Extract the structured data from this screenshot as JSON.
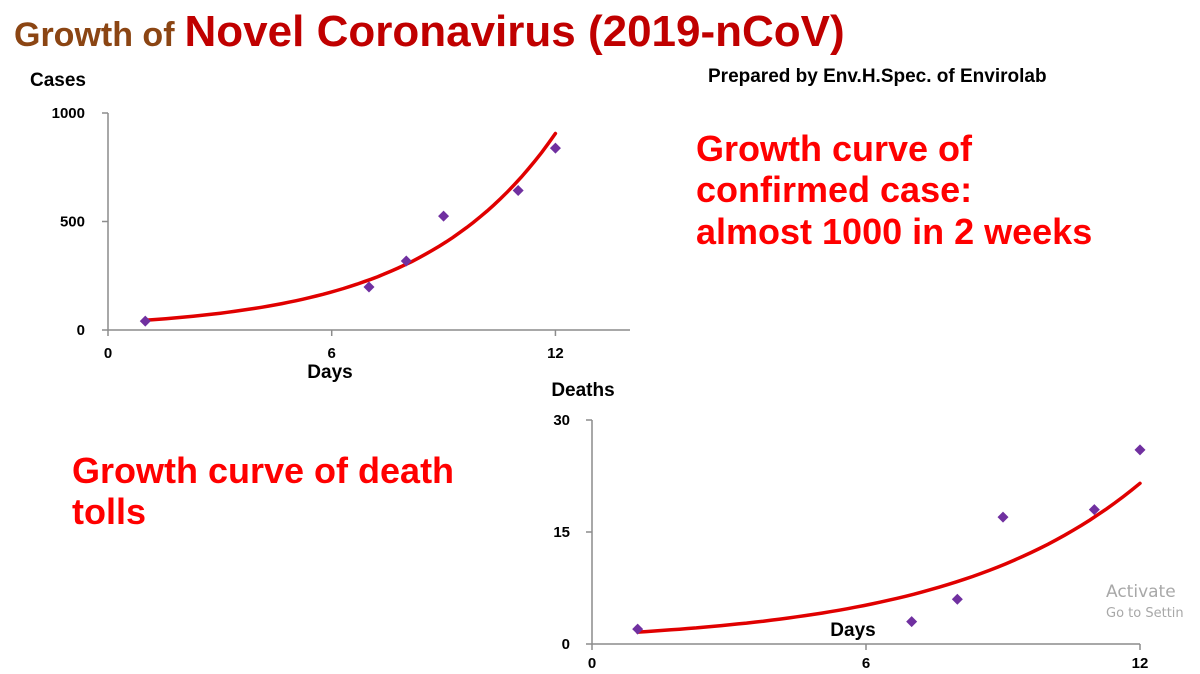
{
  "header": {
    "title_prefix": "Growth of",
    "title_main": "Novel Coronavirus (2019-nCoV)",
    "prepared_by": "Prepared by Env.H.Spec. of Envirolab"
  },
  "notes": {
    "cases_note": "Growth curve of confirmed case: almost 1000 in 2 weeks",
    "deaths_note": "Growth curve of death tolls"
  },
  "watermark": {
    "line1": "Activate",
    "line2": "Go to Settin"
  },
  "colors": {
    "marker": "#7030A0",
    "trend": "#E00000",
    "axis": "#8c8c8c"
  },
  "chart_data": [
    {
      "type": "scatter",
      "name": "cases",
      "xlabel": "Days",
      "ylabel": "Cases",
      "xlim": [
        0,
        14
      ],
      "ylim": [
        0,
        1000
      ],
      "xticks": [
        "0",
        "6",
        "12"
      ],
      "yticks": [
        "0",
        "500",
        "1000"
      ],
      "points": [
        {
          "x": 1,
          "y": 41
        },
        {
          "x": 7,
          "y": 198
        },
        {
          "x": 8,
          "y": 318
        },
        {
          "x": 9,
          "y": 525
        },
        {
          "x": 11,
          "y": 643
        },
        {
          "x": 12,
          "y": 838
        }
      ],
      "trendline": {
        "type": "exponential",
        "x_range": [
          1,
          12
        ],
        "a": 34,
        "b": 0.2735
      }
    },
    {
      "type": "scatter",
      "name": "deaths",
      "xlabel": "Days",
      "ylabel": "Deaths",
      "xlim": [
        0,
        12
      ],
      "ylim": [
        0,
        30
      ],
      "xticks": [
        "0",
        "6",
        "12"
      ],
      "yticks": [
        "0",
        "15",
        "30"
      ],
      "points": [
        {
          "x": 1,
          "y": 2
        },
        {
          "x": 7,
          "y": 3
        },
        {
          "x": 8,
          "y": 6
        },
        {
          "x": 9,
          "y": 17
        },
        {
          "x": 11,
          "y": 18
        },
        {
          "x": 12,
          "y": 26
        }
      ],
      "trendline": {
        "type": "exponential",
        "x_range": [
          1,
          12
        ],
        "a": 1.26,
        "b": 0.2365
      }
    }
  ]
}
